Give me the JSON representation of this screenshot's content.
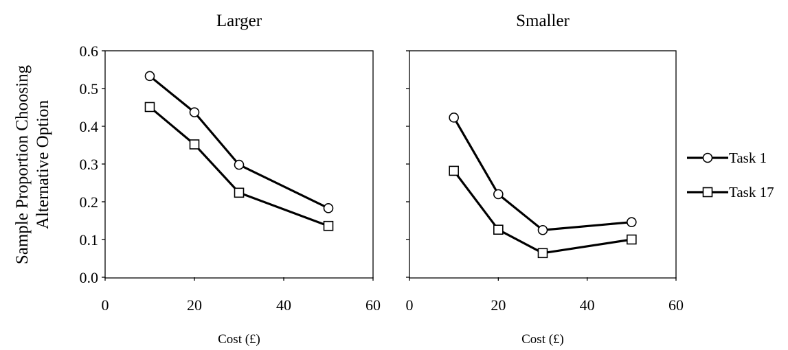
{
  "chart_data": [
    {
      "type": "line",
      "title": "Larger",
      "xlabel": "Cost (£)",
      "ylabel": "Sample Proportion Choosing Alternative Option",
      "xlim": [
        0,
        60
      ],
      "ylim": [
        0.0,
        0.6
      ],
      "xticks": [
        "0",
        "20",
        "40",
        "60"
      ],
      "yticks": [
        "0.0",
        "0.1",
        "0.2",
        "0.3",
        "0.4",
        "0.5",
        "0.6"
      ],
      "grid": false,
      "series": [
        {
          "name": "Task 1",
          "marker": "circle",
          "x": [
            10,
            20,
            30,
            50
          ],
          "y": [
            0.533,
            0.437,
            0.298,
            0.183
          ]
        },
        {
          "name": "Task 17",
          "marker": "square",
          "x": [
            10,
            20,
            30,
            50
          ],
          "y": [
            0.451,
            0.352,
            0.224,
            0.136
          ]
        }
      ]
    },
    {
      "type": "line",
      "title": "Smaller",
      "xlabel": "Cost (£)",
      "xlim": [
        0,
        60
      ],
      "ylim": [
        0.0,
        0.6
      ],
      "xticks": [
        "0",
        "20",
        "40",
        "60"
      ],
      "grid": false,
      "series": [
        {
          "name": "Task 1",
          "marker": "circle",
          "x": [
            10,
            20,
            30,
            50
          ],
          "y": [
            0.423,
            0.22,
            0.125,
            0.146
          ]
        },
        {
          "name": "Task 17",
          "marker": "square",
          "x": [
            10,
            20,
            30,
            50
          ],
          "y": [
            0.282,
            0.126,
            0.064,
            0.1
          ]
        }
      ]
    }
  ],
  "legend": {
    "placement": "right",
    "items": [
      {
        "label": "Task 1",
        "marker": "circle"
      },
      {
        "label": "Task 17",
        "marker": "square"
      }
    ]
  }
}
